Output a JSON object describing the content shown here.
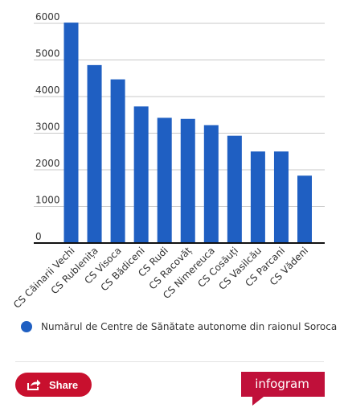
{
  "colors": {
    "bar": "#1f5fc2",
    "legend_dot": "#1f5fc2",
    "grid": "#c8c8c8",
    "axis": "#111111",
    "share_bg": "#c8102e",
    "logo_bg": "#c0103a"
  },
  "chart_data": {
    "type": "bar",
    "categories": [
      "CS Căinarii Vechi",
      "CS Rublenița",
      "CS Visoca",
      "CS Bădiceni",
      "CS Rudi",
      "CS Racovăț",
      "CS Nimereuca",
      "CS Cosăuți",
      "CS Vasilcău",
      "CS Parcani",
      "CS Vădeni"
    ],
    "series": [
      {
        "name": "Numărul de Centre de Sănătate autonome din raionul Soroca",
        "values": [
          6020,
          4860,
          4470,
          3730,
          3420,
          3390,
          3220,
          2930,
          2500,
          2500,
          1840
        ]
      }
    ],
    "yticks": [
      "6000",
      "5000",
      "4000",
      "3000",
      "2000",
      "1000",
      "0"
    ],
    "ylim": [
      0,
      6000
    ],
    "grid": true,
    "legend_position": "bottom"
  },
  "footer": {
    "share_label": "Share",
    "logo_text": "infogram",
    "share_icon": "share-icon"
  }
}
